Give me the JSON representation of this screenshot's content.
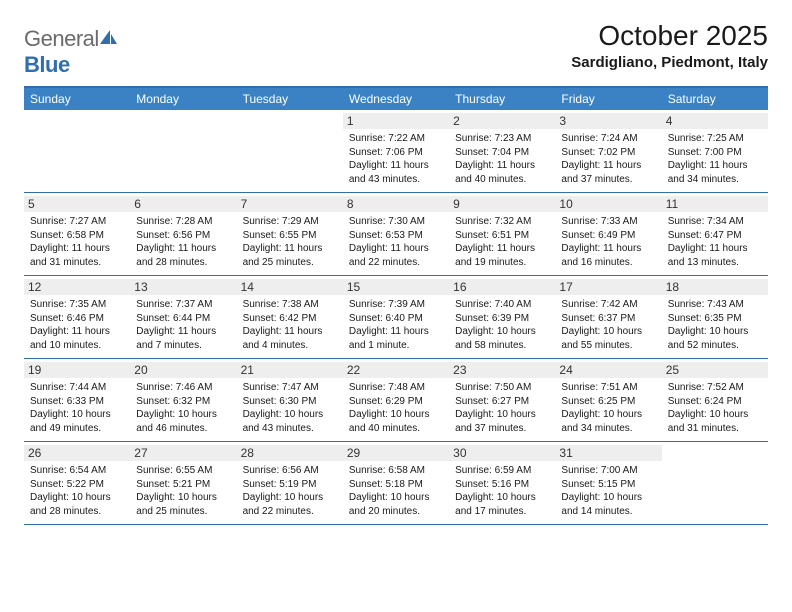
{
  "brand": {
    "part1": "General",
    "part2": "Blue"
  },
  "title": "October 2025",
  "location": "Sardigliano, Piedmont, Italy",
  "colors": {
    "header_bg": "#3a82c4",
    "border": "#2f6fb0",
    "daynum_bg": "#eeeeee",
    "text": "#1a1a1a",
    "logo_gray": "#6b6b6b",
    "logo_blue": "#2f6fb0",
    "page_bg": "#ffffff"
  },
  "dayNames": [
    "Sunday",
    "Monday",
    "Tuesday",
    "Wednesday",
    "Thursday",
    "Friday",
    "Saturday"
  ],
  "weeks": [
    [
      null,
      null,
      null,
      {
        "n": "1",
        "r": "7:22 AM",
        "s": "7:06 PM",
        "d": "11 hours and 43 minutes."
      },
      {
        "n": "2",
        "r": "7:23 AM",
        "s": "7:04 PM",
        "d": "11 hours and 40 minutes."
      },
      {
        "n": "3",
        "r": "7:24 AM",
        "s": "7:02 PM",
        "d": "11 hours and 37 minutes."
      },
      {
        "n": "4",
        "r": "7:25 AM",
        "s": "7:00 PM",
        "d": "11 hours and 34 minutes."
      }
    ],
    [
      {
        "n": "5",
        "r": "7:27 AM",
        "s": "6:58 PM",
        "d": "11 hours and 31 minutes."
      },
      {
        "n": "6",
        "r": "7:28 AM",
        "s": "6:56 PM",
        "d": "11 hours and 28 minutes."
      },
      {
        "n": "7",
        "r": "7:29 AM",
        "s": "6:55 PM",
        "d": "11 hours and 25 minutes."
      },
      {
        "n": "8",
        "r": "7:30 AM",
        "s": "6:53 PM",
        "d": "11 hours and 22 minutes."
      },
      {
        "n": "9",
        "r": "7:32 AM",
        "s": "6:51 PM",
        "d": "11 hours and 19 minutes."
      },
      {
        "n": "10",
        "r": "7:33 AM",
        "s": "6:49 PM",
        "d": "11 hours and 16 minutes."
      },
      {
        "n": "11",
        "r": "7:34 AM",
        "s": "6:47 PM",
        "d": "11 hours and 13 minutes."
      }
    ],
    [
      {
        "n": "12",
        "r": "7:35 AM",
        "s": "6:46 PM",
        "d": "11 hours and 10 minutes."
      },
      {
        "n": "13",
        "r": "7:37 AM",
        "s": "6:44 PM",
        "d": "11 hours and 7 minutes."
      },
      {
        "n": "14",
        "r": "7:38 AM",
        "s": "6:42 PM",
        "d": "11 hours and 4 minutes."
      },
      {
        "n": "15",
        "r": "7:39 AM",
        "s": "6:40 PM",
        "d": "11 hours and 1 minute."
      },
      {
        "n": "16",
        "r": "7:40 AM",
        "s": "6:39 PM",
        "d": "10 hours and 58 minutes."
      },
      {
        "n": "17",
        "r": "7:42 AM",
        "s": "6:37 PM",
        "d": "10 hours and 55 minutes."
      },
      {
        "n": "18",
        "r": "7:43 AM",
        "s": "6:35 PM",
        "d": "10 hours and 52 minutes."
      }
    ],
    [
      {
        "n": "19",
        "r": "7:44 AM",
        "s": "6:33 PM",
        "d": "10 hours and 49 minutes."
      },
      {
        "n": "20",
        "r": "7:46 AM",
        "s": "6:32 PM",
        "d": "10 hours and 46 minutes."
      },
      {
        "n": "21",
        "r": "7:47 AM",
        "s": "6:30 PM",
        "d": "10 hours and 43 minutes."
      },
      {
        "n": "22",
        "r": "7:48 AM",
        "s": "6:29 PM",
        "d": "10 hours and 40 minutes."
      },
      {
        "n": "23",
        "r": "7:50 AM",
        "s": "6:27 PM",
        "d": "10 hours and 37 minutes."
      },
      {
        "n": "24",
        "r": "7:51 AM",
        "s": "6:25 PM",
        "d": "10 hours and 34 minutes."
      },
      {
        "n": "25",
        "r": "7:52 AM",
        "s": "6:24 PM",
        "d": "10 hours and 31 minutes."
      }
    ],
    [
      {
        "n": "26",
        "r": "6:54 AM",
        "s": "5:22 PM",
        "d": "10 hours and 28 minutes."
      },
      {
        "n": "27",
        "r": "6:55 AM",
        "s": "5:21 PM",
        "d": "10 hours and 25 minutes."
      },
      {
        "n": "28",
        "r": "6:56 AM",
        "s": "5:19 PM",
        "d": "10 hours and 22 minutes."
      },
      {
        "n": "29",
        "r": "6:58 AM",
        "s": "5:18 PM",
        "d": "10 hours and 20 minutes."
      },
      {
        "n": "30",
        "r": "6:59 AM",
        "s": "5:16 PM",
        "d": "10 hours and 17 minutes."
      },
      {
        "n": "31",
        "r": "7:00 AM",
        "s": "5:15 PM",
        "d": "10 hours and 14 minutes."
      },
      null
    ]
  ],
  "labels": {
    "sunrise": "Sunrise:",
    "sunset": "Sunset:",
    "daylight": "Daylight:"
  }
}
